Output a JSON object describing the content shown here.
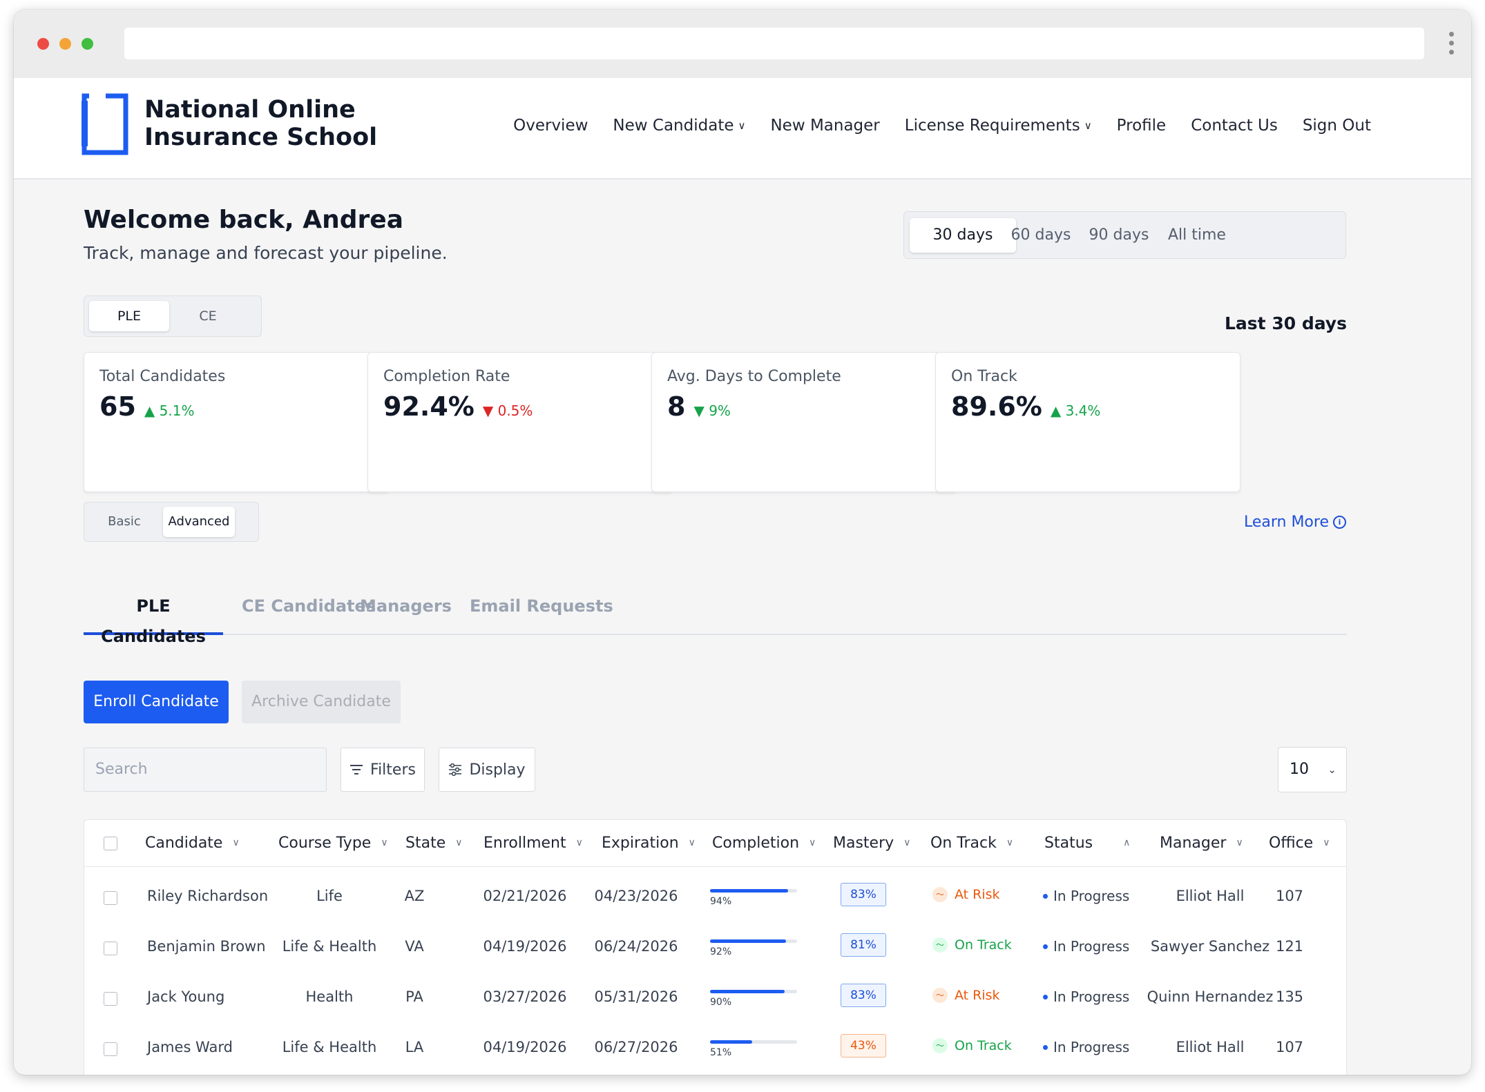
{
  "brand": {
    "name_line1": "National Online",
    "name_line2": "Insurance School",
    "accent": "#1d5cf0"
  },
  "nav": [
    {
      "label": "Overview",
      "dropdown": false
    },
    {
      "label": "New Candidate",
      "dropdown": true
    },
    {
      "label": "New Manager",
      "dropdown": false
    },
    {
      "label": "License Requirements",
      "dropdown": true
    },
    {
      "label": "Profile",
      "dropdown": false
    },
    {
      "label": "Contact Us",
      "dropdown": false
    },
    {
      "label": "Sign Out",
      "dropdown": false
    }
  ],
  "header": {
    "title": "Welcome back, Andrea",
    "subtitle": "Track, manage and forecast your pipeline."
  },
  "range_options": [
    "30 days",
    "60 days",
    "90 days",
    "All time"
  ],
  "range_selected": "30 days",
  "program_options": [
    "PLE",
    "CE"
  ],
  "program_selected": "PLE",
  "period_label": "Last 30 days",
  "stats": [
    {
      "label": "Total Candidates",
      "value": "65",
      "delta": "5.1%",
      "direction": "up"
    },
    {
      "label": "Completion Rate",
      "value": "92.4%",
      "delta": "0.5%",
      "direction": "down"
    },
    {
      "label": "Avg. Days to Complete",
      "value": "8",
      "delta": "9%",
      "direction": "down-good"
    },
    {
      "label": "On Track",
      "value": "89.6%",
      "delta": "3.4%",
      "direction": "up"
    }
  ],
  "view_modes": [
    "Basic",
    "Advanced"
  ],
  "view_selected": "Advanced",
  "learn_more": "Learn More",
  "tabs": [
    "PLE Candidates",
    "CE Candidates",
    "Managers",
    "Email Requests"
  ],
  "tab_selected": "PLE Candidates",
  "actions": {
    "enroll": "Enroll Candidate",
    "archive": "Archive Candidate"
  },
  "toolbar": {
    "search_placeholder": "Search",
    "filters": "Filters",
    "display": "Display",
    "page_size": "10"
  },
  "columns": [
    "Candidate",
    "Course Type",
    "State",
    "Enrollment",
    "Expiration",
    "Completion",
    "Mastery",
    "On Track",
    "Status",
    "Manager",
    "Office"
  ],
  "rows": [
    {
      "candidate": "Riley Richardson",
      "course": "Life",
      "state": "AZ",
      "enrollment": "02/21/2026",
      "expiration": "04/23/2026",
      "completion": 94,
      "completion_label": "94%",
      "mastery": "83%",
      "mastery_level": "good",
      "on_track": "At Risk",
      "on_track_state": "risk",
      "status": "In Progress",
      "manager": "Elliot Hall",
      "office": "107"
    },
    {
      "candidate": "Benjamin Brown",
      "course": "Life & Health",
      "state": "VA",
      "enrollment": "04/19/2026",
      "expiration": "06/24/2026",
      "completion": 92,
      "completion_label": "92%",
      "mastery": "81%",
      "mastery_level": "good",
      "on_track": "On Track",
      "on_track_state": "ok",
      "status": "In Progress",
      "manager": "Sawyer Sanchez",
      "office": "121"
    },
    {
      "candidate": "Jack Young",
      "course": "Health",
      "state": "PA",
      "enrollment": "03/27/2026",
      "expiration": "05/31/2026",
      "completion": 90,
      "completion_label": "90%",
      "mastery": "83%",
      "mastery_level": "good",
      "on_track": "At Risk",
      "on_track_state": "risk",
      "status": "In Progress",
      "manager": "Quinn Hernandez",
      "office": "135"
    },
    {
      "candidate": "James Ward",
      "course": "Life & Health",
      "state": "LA",
      "enrollment": "04/19/2026",
      "expiration": "06/27/2026",
      "completion": 51,
      "completion_label": "51%",
      "mastery": "43%",
      "mastery_level": "low",
      "on_track": "On Track",
      "on_track_state": "ok",
      "status": "In Progress",
      "manager": "Elliot Hall",
      "office": "107"
    }
  ]
}
